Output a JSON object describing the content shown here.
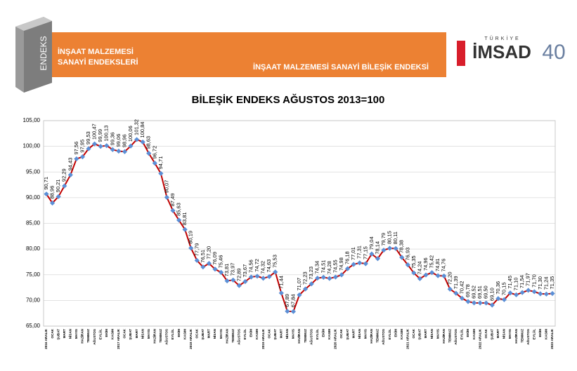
{
  "header": {
    "logo_text": "ENDEKS",
    "section_title": [
      "İNŞAAT MALZEMESİ",
      "SANAYİ ENDEKSLERİ"
    ],
    "page_title": "İNŞAAT MALZEMESİ SANAYİ BİLEŞİK ENDEKSİ",
    "brand_top": "TÜRKİYE",
    "brand": "İMSAD",
    "anniversary": "40"
  },
  "chart_data": {
    "type": "line",
    "title": "BİLEŞİK ENDEKS AĞUSTOS 2013=100",
    "categories": [
      "2016 ARALIK",
      "OCAK",
      "ŞUBAT",
      "MART",
      "NİSAN",
      "MAYIS",
      "HAZİRAN",
      "TEMMUZ",
      "AĞUSTOS",
      "EYLÜL",
      "EKİM",
      "KASIM",
      "2017 ARALIK",
      "OCAK",
      "ŞUBAT",
      "MART",
      "NİSAN",
      "MAYIS",
      "HAZİRAN",
      "TEMMUZ",
      "AĞUSTOS",
      "EYLÜL",
      "EKİM",
      "KASIM",
      "2018 ARALIK",
      "OCAK",
      "ŞUBAT",
      "MART",
      "NİSAN",
      "MAYIS",
      "HAZİRAN",
      "TEMMUZ",
      "AĞUSTOS",
      "EYLÜL",
      "EKİM",
      "KASIM",
      "2019 ARALIK",
      "OCAK",
      "ŞUBAT",
      "MART",
      "NİSAN",
      "MAYIS",
      "HAZİRAN",
      "TEMMUZ",
      "AĞUSTOS",
      "EYLÜL",
      "EKİM",
      "KASIM",
      "2020 ARALIK",
      "OCAK",
      "ŞUBAT",
      "MART",
      "NİSAN",
      "MAYIS",
      "HAZİRAN",
      "TEMMUZ",
      "AĞUSTOS",
      "EYLÜL",
      "EKİM",
      "KASIM",
      "2021 ARALIK",
      "OCAK",
      "ŞUBAT",
      "MART",
      "NİSAN",
      "MAYIS",
      "HAZİRAN",
      "TEMMUZ",
      "AĞUSTOS",
      "EYLÜL",
      "EKİM",
      "KASIM",
      "2022 ARALIK",
      "OCAK",
      "ŞUBAT",
      "MART",
      "NİSAN",
      "MAYIS",
      "HAZİRAN",
      "TEMMUZ",
      "AĞUSTOS",
      "EYLÜL",
      "EKİM",
      "KASIM",
      "2023 ARALIK"
    ],
    "values": [
      90.71,
      88.96,
      90.21,
      92.29,
      94.43,
      97.56,
      97.95,
      99.53,
      100.47,
      99.99,
      100.13,
      99.36,
      99.06,
      98.96,
      100.06,
      101.32,
      100.84,
      98.63,
      96.72,
      94.71,
      90.07,
      87.49,
      85.63,
      83.81,
      80.19,
      77.79,
      76.51,
      77.2,
      76.09,
      75.46,
      73.81,
      73.97,
      72.89,
      73.67,
      74.56,
      74.72,
      74.32,
      74.63,
      75.53,
      71.44,
      67.89,
      67.84,
      71.07,
      72.23,
      73.23,
      74.34,
      74.51,
      74.28,
      74.55,
      74.98,
      76.18,
      77.01,
      77.31,
      77.15,
      79.04,
      78.14,
      79.79,
      80.15,
      80.11,
      78.38,
      76.93,
      75.35,
      74.24,
      74.96,
      75.42,
      74.81,
      74.76,
      72.2,
      71.39,
      70.42,
      69.78,
      69.52,
      69.51,
      69.5,
      69.1,
      70.36,
      70.15,
      71.45,
      71.1,
      71.54,
      71.97,
      71.7,
      71.3,
      71.24,
      71.35
    ],
    "value_labels": [
      "90,71",
      "88,96",
      "90,21",
      "92,29",
      "94,43",
      "97,56",
      "97,95",
      "99,53",
      "100,47",
      "99,99",
      "100,13",
      "99,36",
      "99,06",
      "98,96",
      "100,06",
      "101,32",
      "100,84",
      "98,63",
      "96,72",
      "94,71",
      "90,07",
      "87,49",
      "85,63",
      "83,81",
      "80,19",
      "77,79",
      "76,51",
      "77,20",
      "76,09",
      "75,46",
      "73,81",
      "73,97",
      "72,89",
      "73,67",
      "74,56",
      "74,72",
      "74,32",
      "74,63",
      "75,53",
      "71,44",
      "67,89",
      "67,84",
      "71,07",
      "72,23",
      "73,23",
      "74,34",
      "74,51",
      "74,28",
      "74,55",
      "74,98",
      "76,18",
      "77,01",
      "77,31",
      "77,15",
      "79,04",
      "78,14",
      "79,79",
      "80,15",
      "80,11",
      "78,38",
      "76,93",
      "75,35",
      "74,24",
      "74,96",
      "75,42",
      "74,81",
      "74,76",
      "72,20",
      "71,39",
      "70,42",
      "69,78",
      "69,52",
      "69,51",
      "69,50",
      "69,10",
      "70,36",
      "70,15",
      "71,45",
      "71,10",
      "71,54",
      "71,97",
      "71,70",
      "71,30",
      "71,24",
      "71,35"
    ],
    "color": "#c00000",
    "marker_color": "#5b8fd6",
    "ylim": [
      65,
      105
    ],
    "yticks": [
      {
        "value": 65,
        "label": "65,00"
      },
      {
        "value": 70,
        "label": "70,00"
      },
      {
        "value": 75,
        "label": "75,00"
      },
      {
        "value": 80,
        "label": "80,00"
      },
      {
        "value": 85,
        "label": "85,00"
      },
      {
        "value": 90,
        "label": "90,00"
      },
      {
        "value": 95,
        "label": "95,00"
      },
      {
        "value": 100,
        "label": "100,00"
      },
      {
        "value": 105,
        "label": "105,00"
      }
    ],
    "grid": true
  }
}
